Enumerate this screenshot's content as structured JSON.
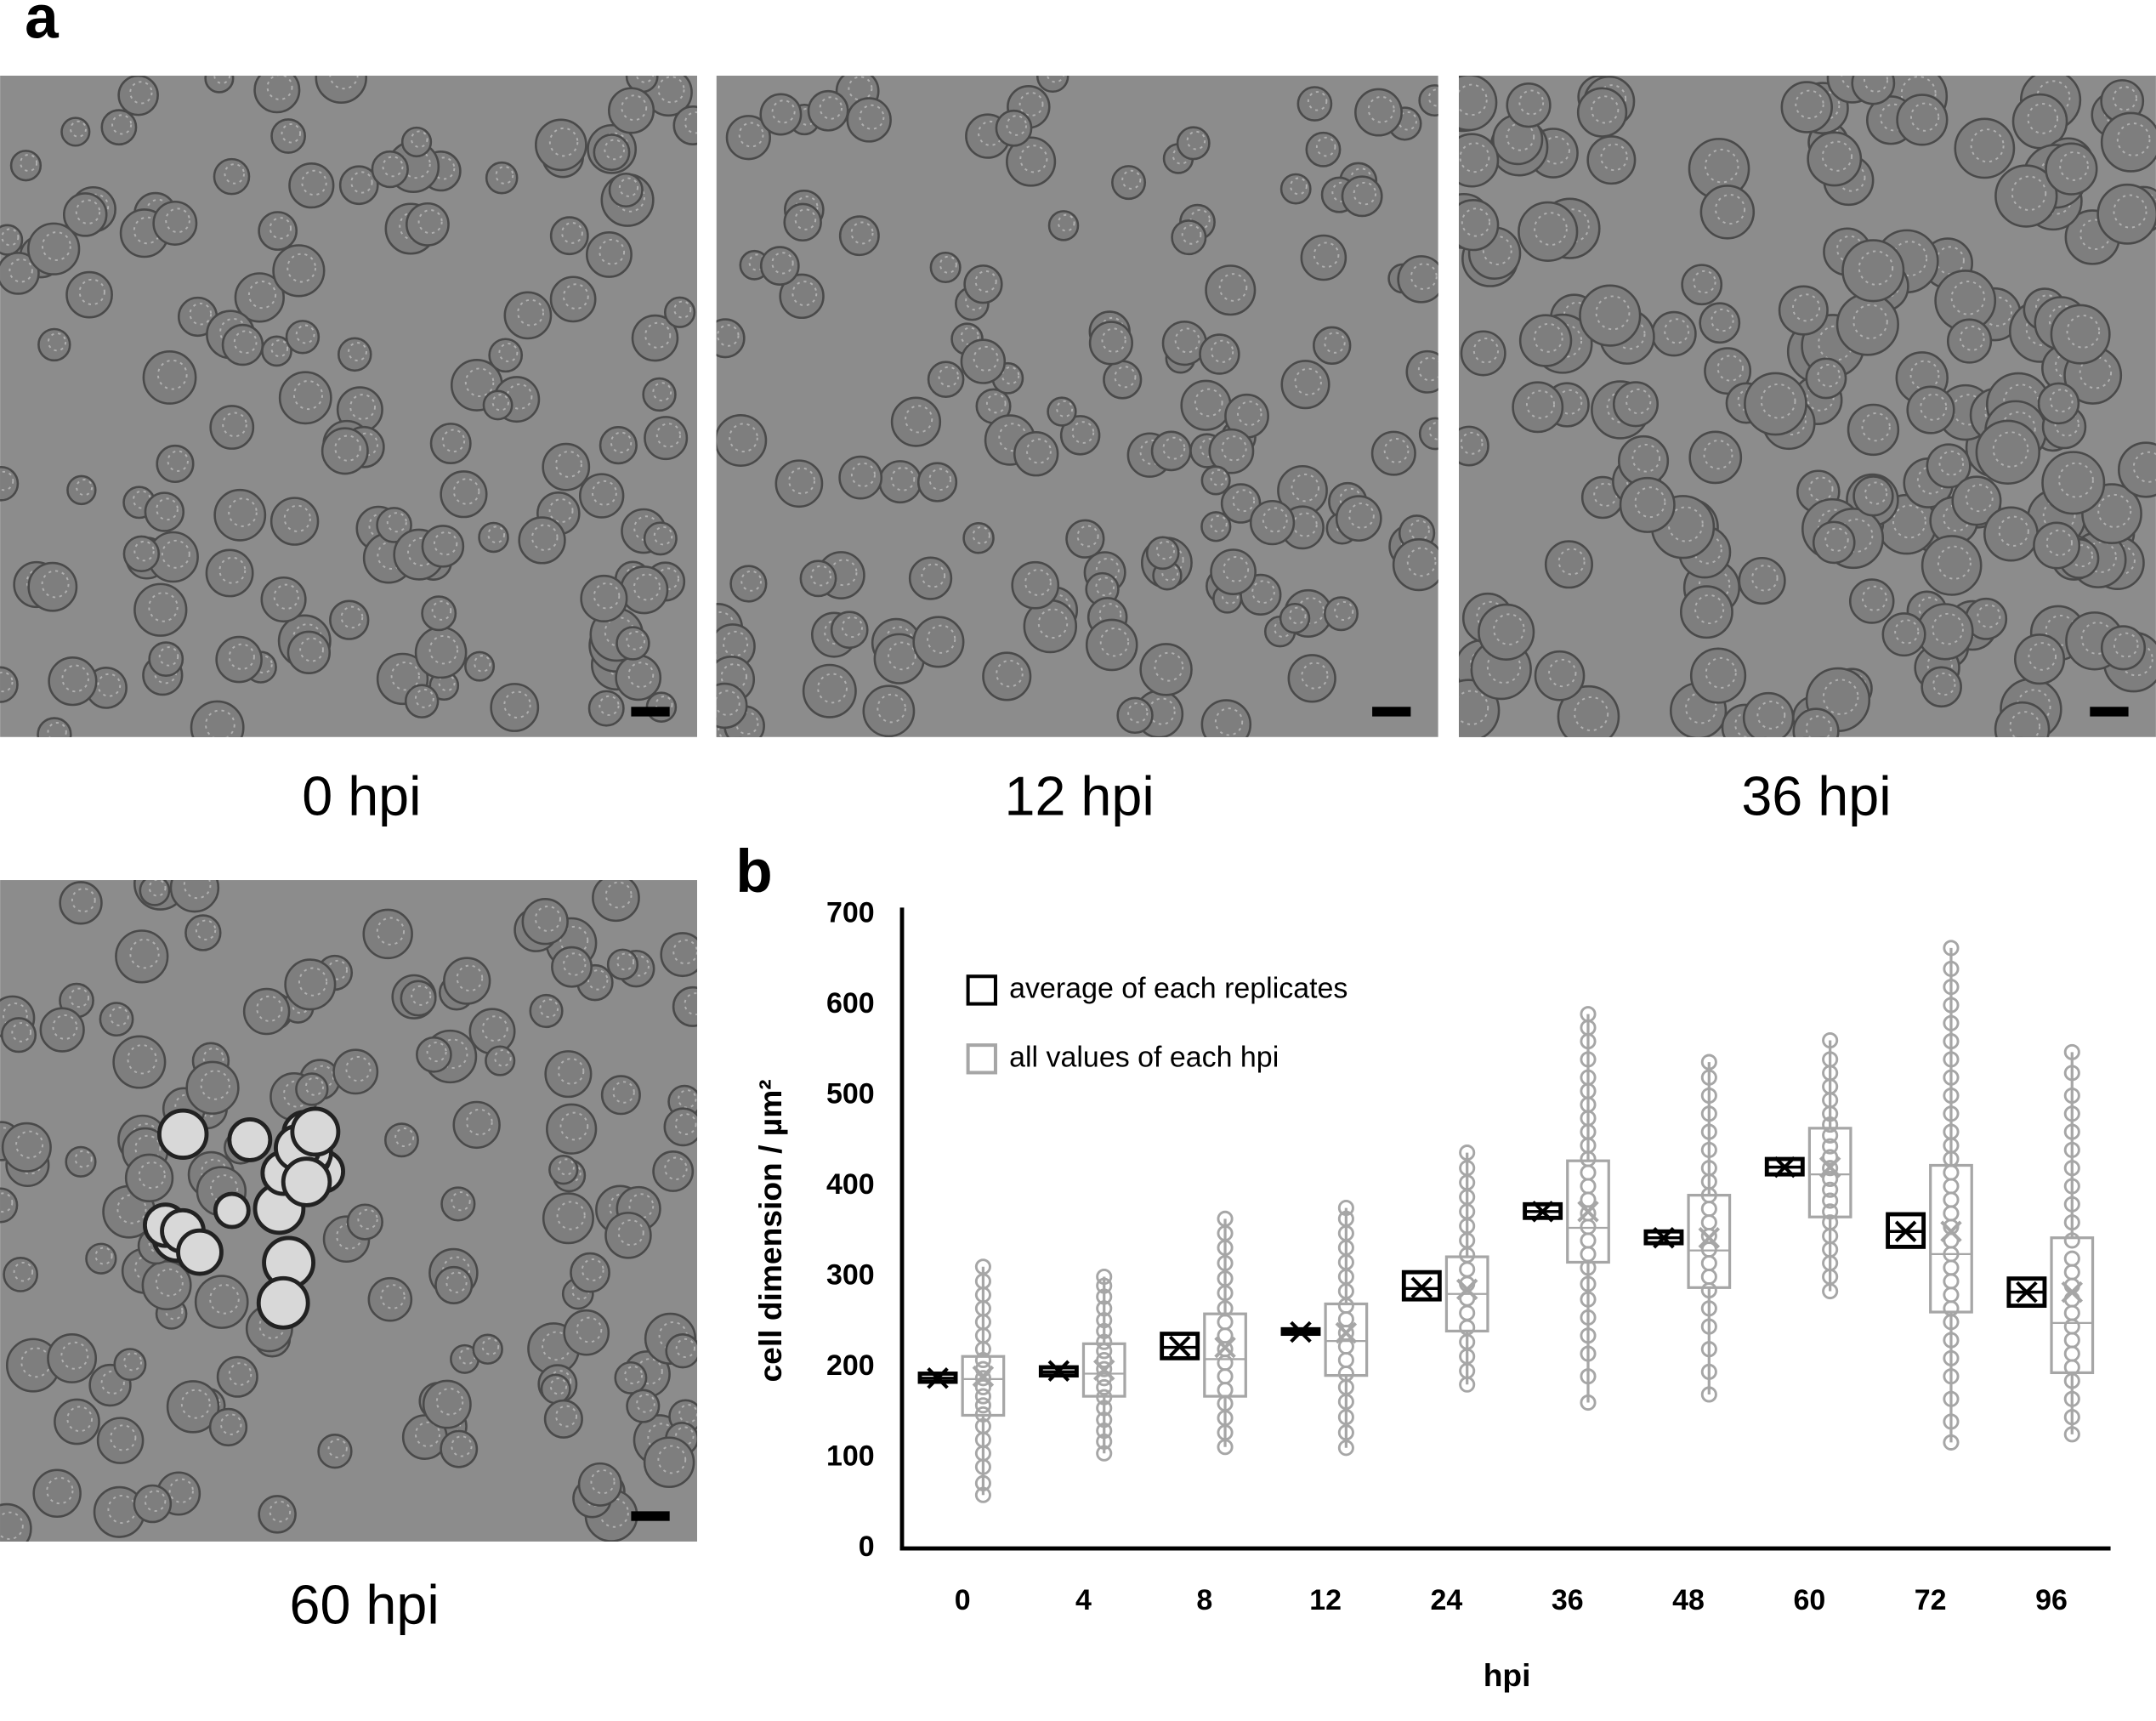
{
  "panel_labels": [
    "a",
    "b"
  ],
  "images": [
    {
      "caption": "0 hpi"
    },
    {
      "caption": "12 hpi"
    },
    {
      "caption": "36 hpi"
    },
    {
      "caption": "60 hpi"
    }
  ],
  "chart_data": {
    "type": "box",
    "x_label": "hpi",
    "y_label": "cell dimension / µm²",
    "categories": [
      "0",
      "4",
      "8",
      "12",
      "24",
      "36",
      "48",
      "60",
      "72",
      "96"
    ],
    "ylim": [
      0,
      700
    ],
    "yticks": [
      0,
      100,
      200,
      300,
      400,
      500,
      600,
      700
    ],
    "series": [
      {
        "name": "average of each replicates",
        "color": "#000000",
        "boxes": [
          {
            "min": 183,
            "q1": 184,
            "median": 188,
            "q3": 193,
            "max": 195,
            "mean": 188
          },
          {
            "min": 190,
            "q1": 191,
            "median": 195,
            "q3": 200,
            "max": 201,
            "mean": 196
          },
          {
            "min": 209,
            "q1": 210,
            "median": 222,
            "q3": 237,
            "max": 238,
            "mean": 223
          },
          {
            "min": 236,
            "q1": 237,
            "median": 239,
            "q3": 242,
            "max": 243,
            "mean": 239
          },
          {
            "min": 274,
            "q1": 275,
            "median": 287,
            "q3": 305,
            "max": 306,
            "mean": 288
          },
          {
            "min": 364,
            "q1": 365,
            "median": 372,
            "q3": 380,
            "max": 381,
            "mean": 372
          },
          {
            "min": 336,
            "q1": 337,
            "median": 343,
            "q3": 350,
            "max": 351,
            "mean": 343
          },
          {
            "min": 412,
            "q1": 413,
            "median": 421,
            "q3": 430,
            "max": 431,
            "mean": 421
          },
          {
            "min": 332,
            "q1": 333,
            "median": 350,
            "q3": 369,
            "max": 370,
            "mean": 350
          },
          {
            "min": 267,
            "q1": 268,
            "median": 283,
            "q3": 298,
            "max": 299,
            "mean": 283
          }
        ]
      },
      {
        "name": "all values of each hpi",
        "color": "#a6a6a6",
        "boxes": [
          {
            "min": 59,
            "q1": 147,
            "median": 187,
            "q3": 212,
            "max": 311,
            "mean": 190
          },
          {
            "min": 105,
            "q1": 168,
            "median": 193,
            "q3": 226,
            "max": 300,
            "mean": 197
          },
          {
            "min": 112,
            "q1": 168,
            "median": 209,
            "q3": 259,
            "max": 364,
            "mean": 222
          },
          {
            "min": 111,
            "q1": 191,
            "median": 229,
            "q3": 270,
            "max": 376,
            "mean": 238
          },
          {
            "min": 181,
            "q1": 240,
            "median": 281,
            "q3": 322,
            "max": 437,
            "mean": 286
          },
          {
            "min": 161,
            "q1": 316,
            "median": 354,
            "q3": 428,
            "max": 590,
            "mean": 372
          },
          {
            "min": 170,
            "q1": 288,
            "median": 329,
            "q3": 390,
            "max": 537,
            "mean": 343
          },
          {
            "min": 284,
            "q1": 366,
            "median": 413,
            "q3": 464,
            "max": 561,
            "mean": 421
          },
          {
            "min": 117,
            "q1": 261,
            "median": 325,
            "q3": 423,
            "max": 663,
            "mean": 350
          },
          {
            "min": 126,
            "q1": 194,
            "median": 249,
            "q3": 343,
            "max": 548,
            "mean": 283
          }
        ],
        "points": [
          [
            59,
            72,
            90,
            105,
            120,
            135,
            148,
            158,
            168,
            178,
            188,
            198,
            208,
            220,
            235,
            250,
            265,
            280,
            295,
            311
          ],
          [
            105,
            118,
            130,
            142,
            155,
            167,
            178,
            188,
            198,
            208,
            218,
            228,
            240,
            252,
            265,
            278,
            290,
            300
          ],
          [
            112,
            128,
            144,
            160,
            175,
            190,
            205,
            220,
            235,
            250,
            265,
            282,
            298,
            315,
            332,
            348,
            364
          ],
          [
            111,
            128,
            145,
            162,
            178,
            193,
            208,
            223,
            238,
            253,
            268,
            284,
            300,
            316,
            332,
            348,
            364,
            376
          ],
          [
            181,
            196,
            212,
            228,
            244,
            260,
            276,
            292,
            308,
            324,
            340,
            356,
            372,
            388,
            404,
            420,
            437
          ],
          [
            161,
            190,
            215,
            235,
            255,
            275,
            292,
            310,
            325,
            340,
            355,
            370,
            385,
            400,
            415,
            430,
            445,
            460,
            475,
            490,
            505,
            520,
            540,
            560,
            575,
            590
          ],
          [
            170,
            195,
            220,
            245,
            265,
            285,
            300,
            315,
            330,
            345,
            360,
            375,
            390,
            405,
            420,
            440,
            460,
            480,
            500,
            520,
            537
          ],
          [
            284,
            300,
            315,
            330,
            345,
            360,
            372,
            384,
            396,
            408,
            420,
            432,
            444,
            456,
            468,
            480,
            495,
            510,
            525,
            540,
            561
          ],
          [
            117,
            140,
            165,
            190,
            210,
            230,
            250,
            265,
            280,
            295,
            310,
            325,
            340,
            355,
            370,
            385,
            400,
            415,
            430,
            445,
            460,
            480,
            500,
            520,
            540,
            560,
            580,
            600,
            620,
            640,
            663
          ],
          [
            126,
            145,
            165,
            185,
            200,
            215,
            230,
            245,
            260,
            275,
            290,
            305,
            320,
            340,
            360,
            380,
            400,
            420,
            440,
            460,
            480,
            500,
            525,
            548
          ]
        ]
      }
    ]
  }
}
